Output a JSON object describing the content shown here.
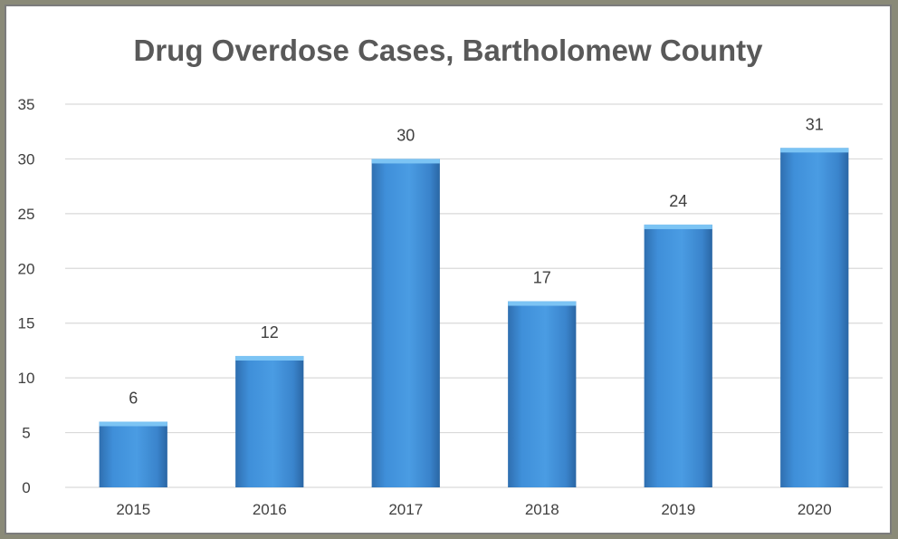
{
  "chart_data": {
    "type": "bar",
    "title": "Drug Overdose Cases, Bartholomew County",
    "categories": [
      "2015",
      "2016",
      "2017",
      "2018",
      "2019",
      "2020"
    ],
    "values": [
      6,
      12,
      30,
      17,
      24,
      31
    ],
    "data_labels": [
      "6",
      "12",
      "30",
      "17",
      "24",
      "31"
    ],
    "ylim": [
      0,
      35
    ],
    "y_ticks": [
      0,
      5,
      10,
      15,
      20,
      25,
      30,
      35
    ],
    "y_tick_labels": [
      "0",
      "5",
      "10",
      "15",
      "20",
      "25",
      "30",
      "35"
    ],
    "xlabel": "",
    "ylabel": "",
    "grid": true,
    "legend": "none",
    "bar_color": "#3f8fd9",
    "bar_top_color": "#7cc4f4",
    "text_color": "#404040",
    "gridline_color": "#d9d9d9"
  }
}
